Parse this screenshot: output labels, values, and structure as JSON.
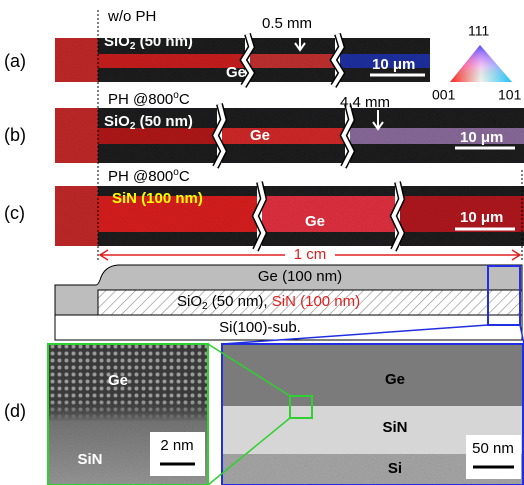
{
  "panel_a": {
    "label": "(a)",
    "condition": "w/o PH",
    "film": {
      "formula": "SiO",
      "subscript": "2",
      "thickness": "(50 nm)"
    },
    "distance": "0.5 mm",
    "material": "Ge",
    "scale_bar": "10 μm"
  },
  "orientation_legend": {
    "top": "111",
    "left": "001",
    "right": "101"
  },
  "panel_b": {
    "label": "(b)",
    "condition": {
      "text": "PH @800",
      "superscript": "o",
      "unit": "C"
    },
    "film": {
      "formula": "SiO",
      "subscript": "2",
      "thickness": "(50 nm)"
    },
    "distance": "4.4 mm",
    "material": "Ge",
    "scale_bar": "10 μm"
  },
  "panel_c": {
    "label": "(c)",
    "condition": {
      "text": "PH @800",
      "superscript": "o",
      "unit": "C"
    },
    "film": "SiN (100 nm)",
    "material": "Ge",
    "scale_bar": "10 μm"
  },
  "schematic": {
    "length": "1 cm",
    "top_layer": "Ge (100 nm)",
    "middle_layer": {
      "oxide": "SiO",
      "oxide_subscript": "2",
      "oxide_thickness": "(50 nm),",
      "nitride": "SiN (100 nm)"
    },
    "substrate": "Si(100)-sub."
  },
  "panel_d": {
    "label": "(d)",
    "zoom": {
      "top": "Ge",
      "bottom": "SiN",
      "scale_bar": "2 nm"
    },
    "overview": {
      "top": "Ge",
      "middle": "SiN",
      "bottom": "Si",
      "scale_bar": "50 nm"
    }
  }
}
